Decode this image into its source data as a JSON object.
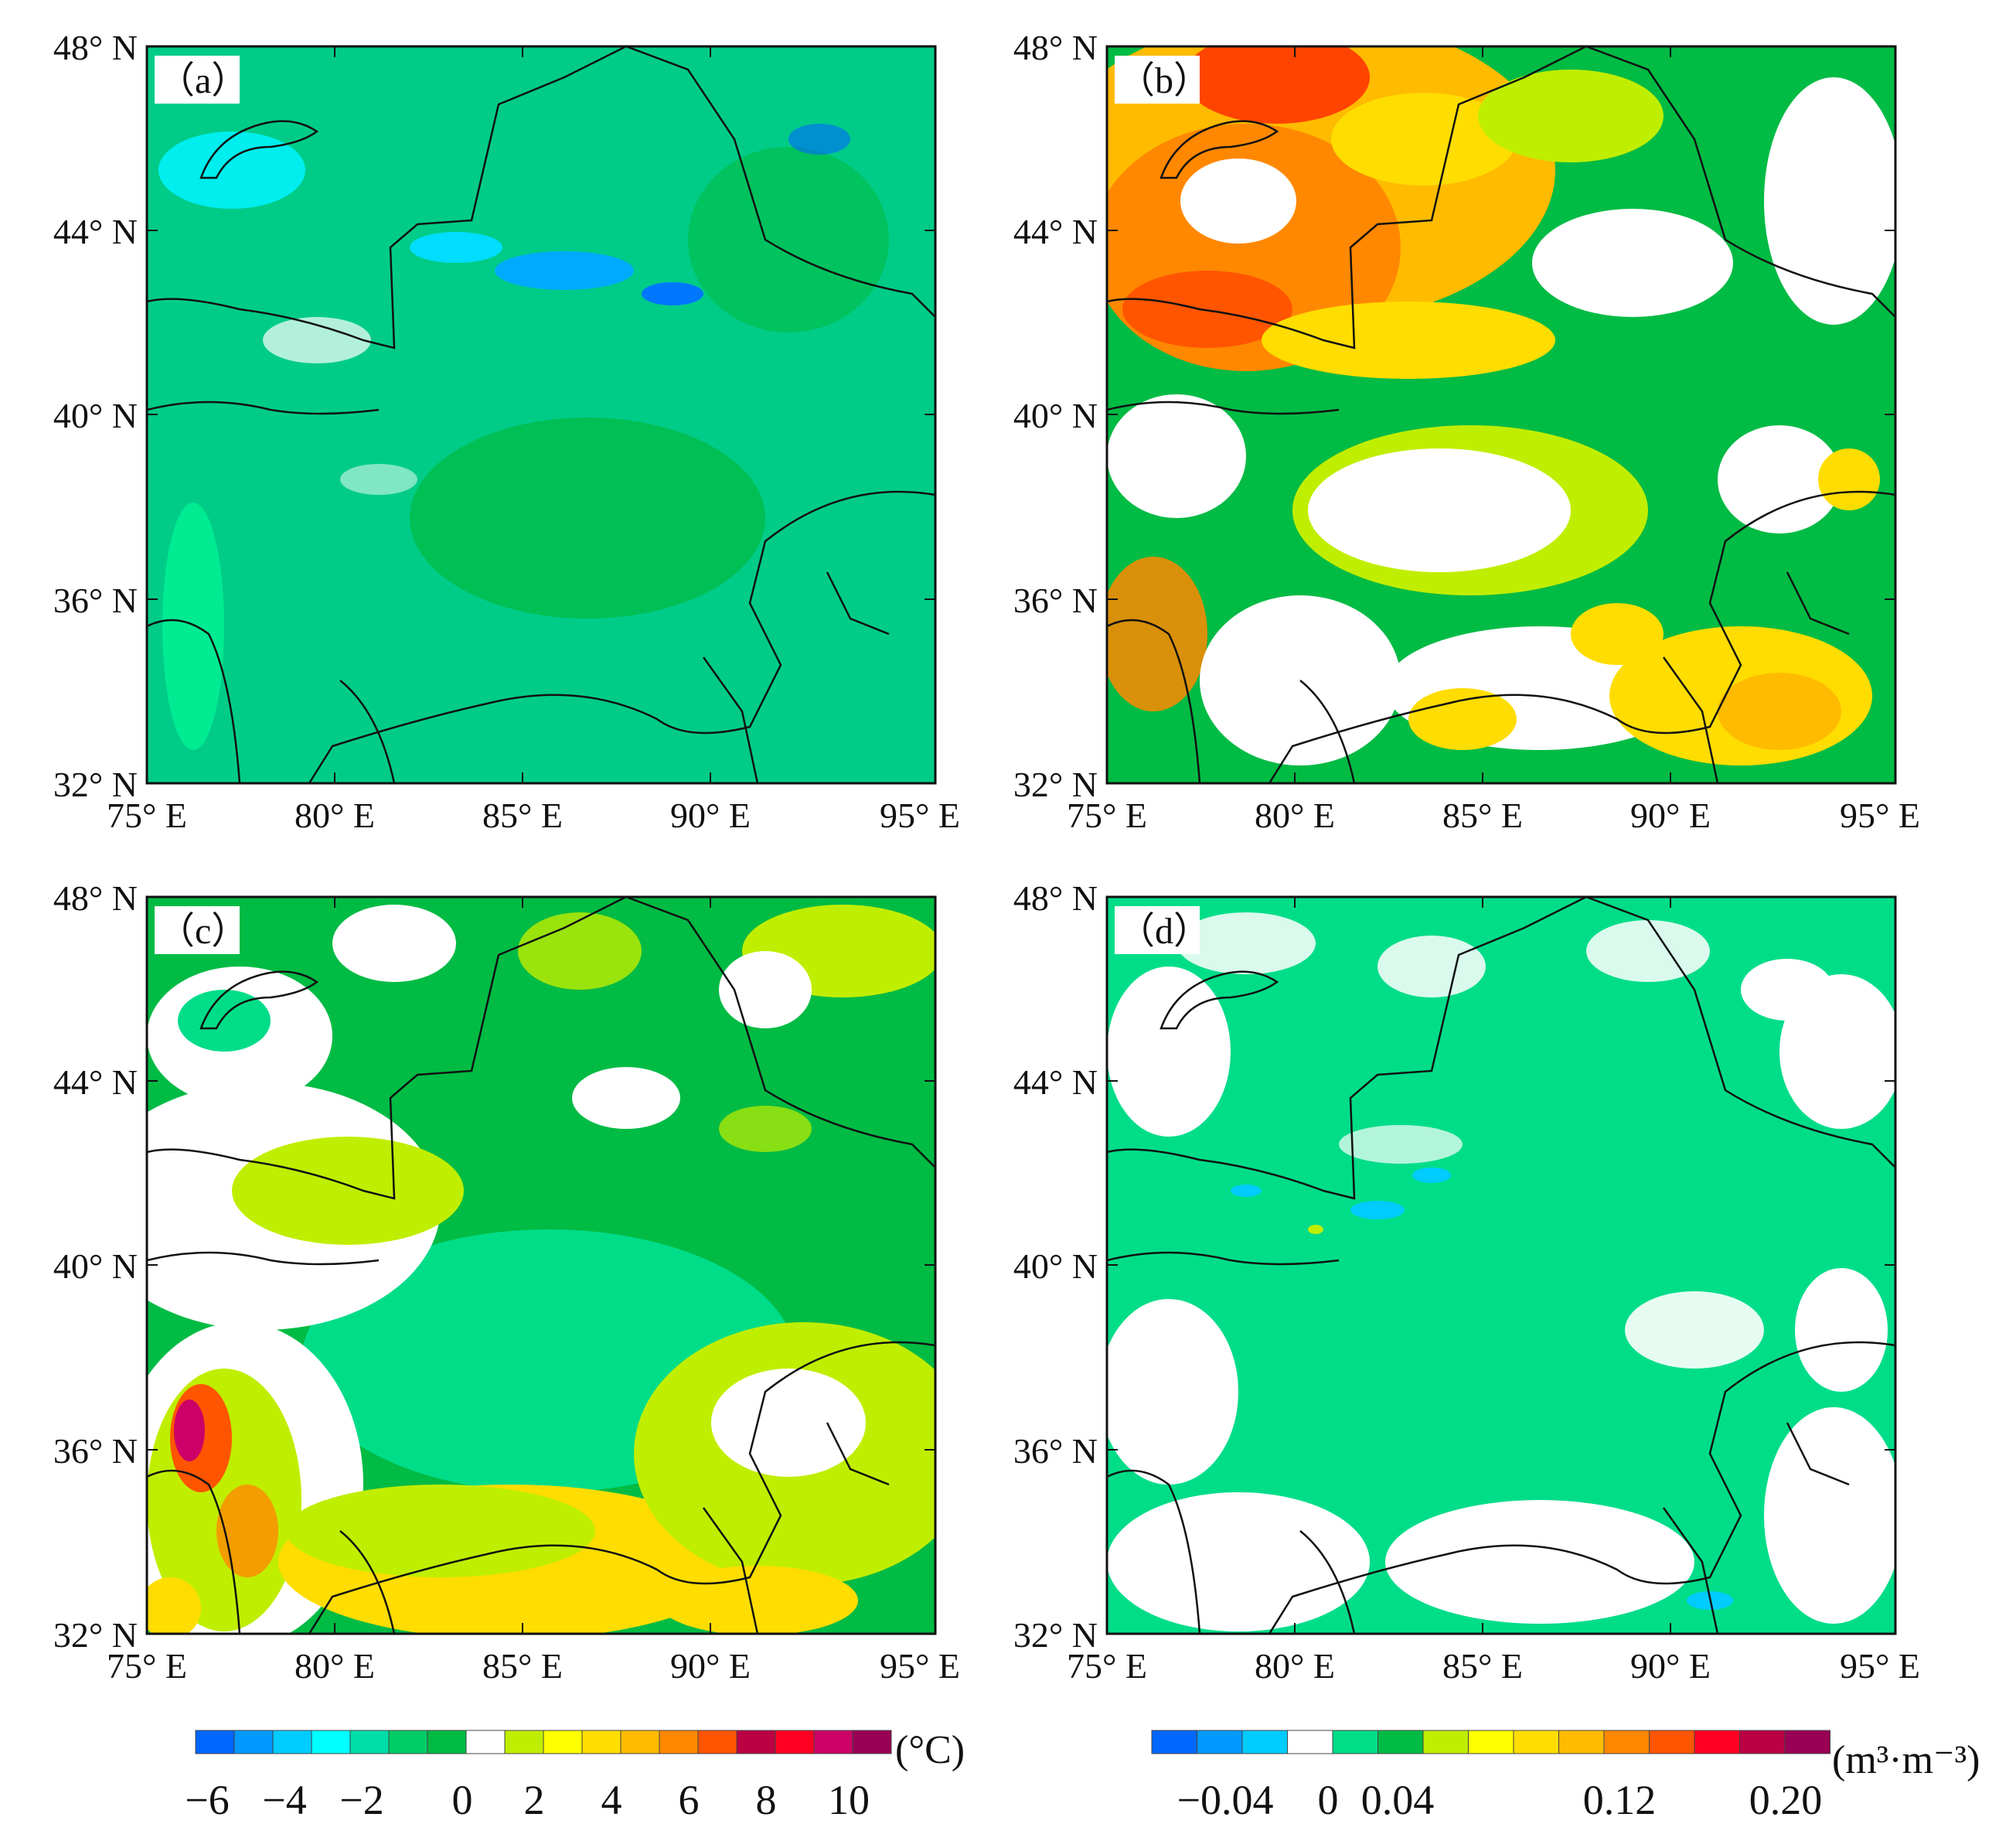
{
  "figure": {
    "panels": [
      {
        "id": "a",
        "label": "（a）",
        "bg": "#00cc88",
        "colorbar": "temp"
      },
      {
        "id": "b",
        "label": "（b）",
        "bg": "#00bb44",
        "colorbar": "sm"
      },
      {
        "id": "c",
        "label": "（c）",
        "bg": "#00bb44",
        "colorbar": "temp"
      },
      {
        "id": "d",
        "label": "（d）",
        "bg": "#00dd88",
        "colorbar": "sm"
      }
    ],
    "y_ticks": [
      "48° N",
      "44° N",
      "40° N",
      "36° N",
      "32° N"
    ],
    "x_ticks": [
      "75° E",
      "80° E",
      "85° E",
      "90° E",
      "95° E"
    ],
    "extent": {
      "lon": [
        75,
        96
      ],
      "lat": [
        32,
        48
      ]
    }
  },
  "colorbar_temp": {
    "unit": "(°C)",
    "labels": [
      "−6",
      "−4",
      "−2",
      "0",
      "2",
      "4",
      "6",
      "8",
      "10"
    ],
    "colors": [
      "#0066ff",
      "#0099ff",
      "#00ccff",
      "#00ffff",
      "#00ddaa",
      "#00cc66",
      "#00bb44",
      "#ffffff",
      "#c0ee00",
      "#ffff00",
      "#ffdd00",
      "#ffbb00",
      "#ff8800",
      "#ff5500",
      "#bb0044",
      "#ff0022",
      "#cc0066",
      "#990055"
    ]
  },
  "colorbar_sm": {
    "unit": "(m³·m⁻³)",
    "labels": [
      "−0.04",
      "0",
      "0.04",
      "0.12",
      "0.20"
    ],
    "colors": [
      "#0066ff",
      "#0099ff",
      "#00ccff",
      "#ffffff",
      "#00dd88",
      "#00bb44",
      "#c0ee00",
      "#ffff00",
      "#ffdd00",
      "#ffbb00",
      "#ff8800",
      "#ff5500",
      "#ff0022",
      "#bb0044",
      "#990055"
    ]
  }
}
